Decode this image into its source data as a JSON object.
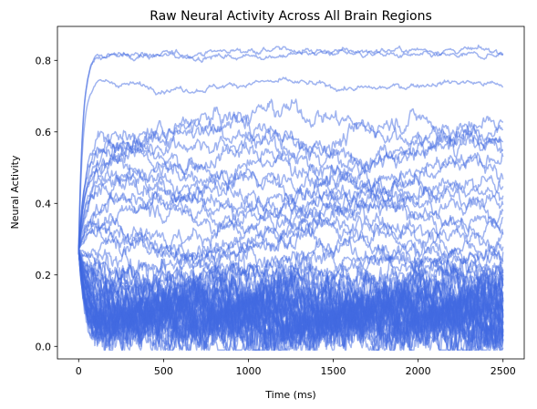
{
  "chart_data": {
    "type": "line",
    "title": "Raw Neural Activity Across All Brain Regions",
    "xlabel": "Time (ms)",
    "ylabel": "Neural Activity",
    "xlim": [
      -125,
      2625
    ],
    "ylim": [
      -0.035,
      0.895
    ],
    "xticks": [
      0,
      500,
      1000,
      1500,
      2000,
      2500
    ],
    "yticks": [
      0.0,
      0.2,
      0.4,
      0.6,
      0.8
    ],
    "xtick_labels": [
      "0",
      "500",
      "1000",
      "1500",
      "2000",
      "2500"
    ],
    "ytick_labels": [
      "0.0",
      "0.2",
      "0.4",
      "0.6",
      "0.8"
    ],
    "color": "#4169e1",
    "line_alpha": 0.5,
    "grid": false,
    "legend": false,
    "time_range": [
      0,
      2500
    ],
    "initial_value": 0.27,
    "series_baselines": [
      0.82,
      0.82,
      0.73,
      0.62,
      0.6,
      0.57,
      0.55,
      0.53,
      0.5,
      0.48,
      0.45,
      0.43,
      0.42,
      0.4,
      0.38,
      0.36,
      0.34,
      0.31,
      0.29,
      0.27,
      0.25,
      0.23,
      0.21,
      0.2,
      0.19,
      0.18,
      0.17,
      0.16,
      0.15,
      0.15,
      0.14,
      0.14,
      0.13,
      0.13,
      0.12,
      0.12,
      0.12,
      0.11,
      0.11,
      0.11,
      0.1,
      0.1,
      0.1,
      0.1,
      0.09,
      0.09,
      0.09,
      0.09,
      0.08,
      0.08,
      0.08,
      0.08,
      0.07,
      0.07,
      0.07,
      0.07,
      0.06,
      0.06,
      0.06,
      0.05,
      0.05,
      0.05,
      0.04,
      0.04
    ]
  }
}
